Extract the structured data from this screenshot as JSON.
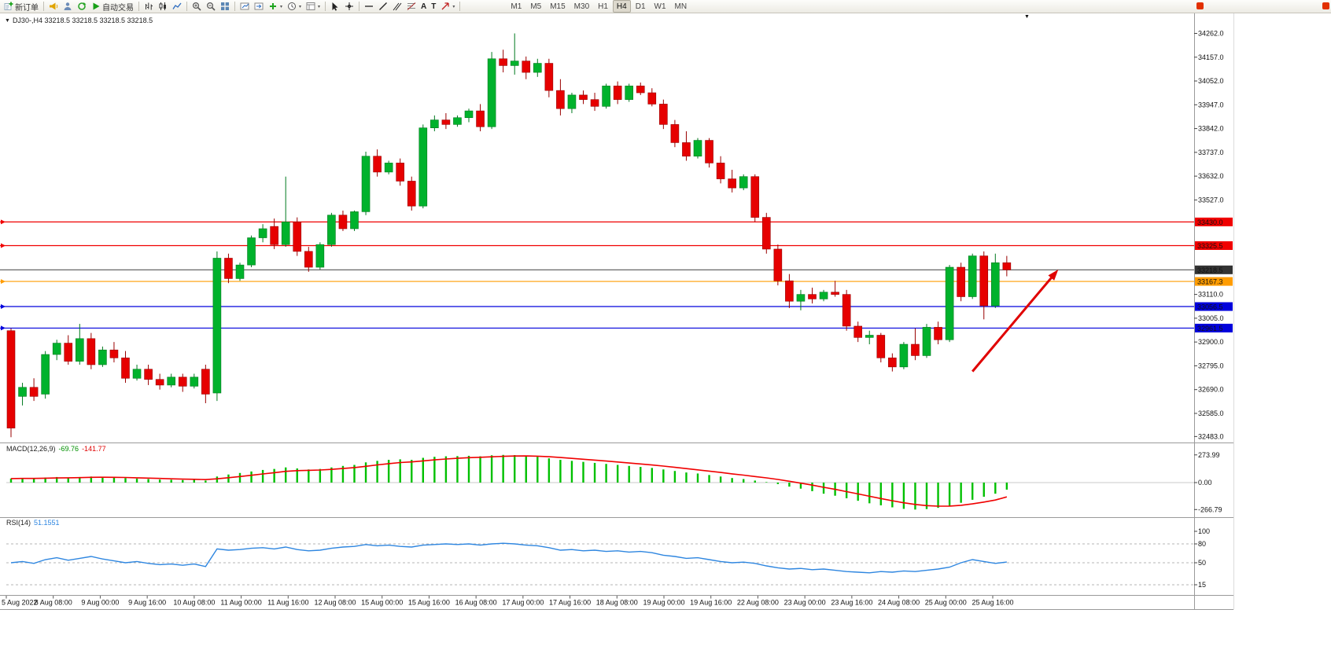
{
  "toolbar": {
    "new_order": "新订单",
    "autotrade": "自动交易",
    "text_tool": "A",
    "text_label_tool": "T",
    "timeframes": [
      "M1",
      "M5",
      "M15",
      "M30",
      "H1",
      "H4",
      "D1",
      "W1",
      "MN"
    ],
    "active_timeframe": "H4"
  },
  "chart_header": {
    "symbol_info": "DJ30-,H4 33218.5 33218.5 33218.5 33218.5"
  },
  "colors": {
    "bull": "#00b22c",
    "bull_border": "#007a1e",
    "bear": "#e60000",
    "bear_border": "#990000",
    "macd_hist": "#00c000",
    "macd_signal": "#f00000",
    "rsi_line": "#2e86e0",
    "grid_border": "#8c8c8c",
    "arrow": "#e00000"
  },
  "chart_data": {
    "type": "candlestick",
    "symbol": "DJ30-",
    "timeframe": "H4",
    "price_panel": {
      "y_range": [
        32460,
        34340
      ],
      "y_tick_labels": [
        "34262.0",
        "34157.0",
        "34052.0",
        "33947.0",
        "33842.0",
        "33737.0",
        "33632.0",
        "33527.0",
        "33110.0",
        "33005.0",
        "32900.0",
        "32795.0",
        "32690.0",
        "32585.0",
        "32483.0"
      ],
      "y_tick_values": [
        34262.0,
        34157.0,
        34052.0,
        33947.0,
        33842.0,
        33737.0,
        33632.0,
        33527.0,
        33110.0,
        33005.0,
        32900.0,
        32795.0,
        32690.0,
        32585.0,
        32483.0
      ],
      "hlines": [
        {
          "price": 33430.0,
          "label": "33430.0",
          "color": "#f00000",
          "tag_bg": "#f00000",
          "role": "resistance-line"
        },
        {
          "price": 33325.5,
          "label": "33325.5",
          "color": "#f00000",
          "tag_bg": "#f00000",
          "role": "resistance-line"
        },
        {
          "price": 33218.5,
          "label": "33218.5",
          "color": "#555555",
          "tag_bg": "#333333",
          "role": "current-price-line"
        },
        {
          "price": 33167.3,
          "label": "33167.3",
          "color": "#ff9c00",
          "tag_bg": "#ff9c00",
          "role": "support-line"
        },
        {
          "price": 33056.5,
          "label": "33056.5",
          "color": "#0000dc",
          "tag_bg": "#0000dc",
          "role": "support-line"
        },
        {
          "price": 32961.5,
          "label": "32961.5",
          "color": "#0000dc",
          "tag_bg": "#0000dc",
          "role": "support-line"
        }
      ],
      "candles": [
        [
          32950,
          32960,
          32480,
          32520
        ],
        [
          32660,
          32720,
          32620,
          32700
        ],
        [
          32700,
          32740,
          32640,
          32660
        ],
        [
          32670,
          32860,
          32650,
          32845
        ],
        [
          32845,
          32910,
          32820,
          32895
        ],
        [
          32895,
          32930,
          32800,
          32815
        ],
        [
          32815,
          32980,
          32800,
          32915
        ],
        [
          32915,
          32940,
          32780,
          32800
        ],
        [
          32800,
          32880,
          32790,
          32865
        ],
        [
          32865,
          32900,
          32810,
          32830
        ],
        [
          32830,
          32860,
          32720,
          32740
        ],
        [
          32740,
          32800,
          32730,
          32780
        ],
        [
          32780,
          32800,
          32710,
          32735
        ],
        [
          32735,
          32760,
          32690,
          32710
        ],
        [
          32710,
          32760,
          32700,
          32745
        ],
        [
          32745,
          32760,
          32680,
          32705
        ],
        [
          32705,
          32760,
          32695,
          32745
        ],
        [
          32780,
          32800,
          32630,
          32670
        ],
        [
          32675,
          33300,
          32640,
          33270
        ],
        [
          33270,
          33290,
          33160,
          33180
        ],
        [
          33180,
          33250,
          33170,
          33240
        ],
        [
          33240,
          33370,
          33230,
          33360
        ],
        [
          33360,
          33420,
          33340,
          33400
        ],
        [
          33410,
          33445,
          33310,
          33330
        ],
        [
          33330,
          33630,
          33320,
          33430
        ],
        [
          33430,
          33450,
          33280,
          33300
        ],
        [
          33300,
          33320,
          33210,
          33230
        ],
        [
          33230,
          33340,
          33220,
          33330
        ],
        [
          33330,
          33470,
          33320,
          33460
        ],
        [
          33460,
          33480,
          33390,
          33400
        ],
        [
          33400,
          33480,
          33390,
          33475
        ],
        [
          33475,
          33740,
          33460,
          33720
        ],
        [
          33720,
          33750,
          33630,
          33650
        ],
        [
          33650,
          33700,
          33640,
          33690
        ],
        [
          33690,
          33710,
          33590,
          33610
        ],
        [
          33610,
          33630,
          33480,
          33500
        ],
        [
          33500,
          33860,
          33490,
          33845
        ],
        [
          33845,
          33900,
          33830,
          33880
        ],
        [
          33880,
          33910,
          33840,
          33860
        ],
        [
          33860,
          33900,
          33850,
          33890
        ],
        [
          33890,
          33930,
          33870,
          33920
        ],
        [
          33920,
          33950,
          33830,
          33850
        ],
        [
          33850,
          34180,
          33840,
          34150
        ],
        [
          34150,
          34190,
          34090,
          34120
        ],
        [
          34120,
          34262,
          34080,
          34140
        ],
        [
          34140,
          34160,
          34060,
          34090
        ],
        [
          34090,
          34150,
          34070,
          34130
        ],
        [
          34130,
          34150,
          33980,
          34010
        ],
        [
          34010,
          34060,
          33900,
          33930
        ],
        [
          33930,
          34000,
          33910,
          33990
        ],
        [
          33990,
          34010,
          33950,
          33970
        ],
        [
          33970,
          34000,
          33920,
          33940
        ],
        [
          33940,
          34040,
          33930,
          34030
        ],
        [
          34030,
          34050,
          33950,
          33970
        ],
        [
          33970,
          34040,
          33960,
          34030
        ],
        [
          34030,
          34045,
          33990,
          34000
        ],
        [
          34000,
          34020,
          33940,
          33950
        ],
        [
          33950,
          33970,
          33840,
          33860
        ],
        [
          33860,
          33880,
          33760,
          33780
        ],
        [
          33780,
          33830,
          33700,
          33720
        ],
        [
          33720,
          33800,
          33710,
          33790
        ],
        [
          33790,
          33800,
          33670,
          33690
        ],
        [
          33690,
          33720,
          33600,
          33620
        ],
        [
          33620,
          33660,
          33560,
          33580
        ],
        [
          33580,
          33640,
          33570,
          33630
        ],
        [
          33630,
          33640,
          33430,
          33450
        ],
        [
          33450,
          33470,
          33290,
          33310
        ],
        [
          33310,
          33330,
          33150,
          33170
        ],
        [
          33170,
          33200,
          33050,
          33080
        ],
        [
          33080,
          33130,
          33040,
          33110
        ],
        [
          33110,
          33140,
          33070,
          33090
        ],
        [
          33090,
          33130,
          33080,
          33120
        ],
        [
          33120,
          33170,
          33100,
          33110
        ],
        [
          33110,
          33130,
          32950,
          32970
        ],
        [
          32970,
          32990,
          32900,
          32920
        ],
        [
          32920,
          32950,
          32890,
          32930
        ],
        [
          32930,
          32940,
          32810,
          32830
        ],
        [
          32830,
          32850,
          32770,
          32790
        ],
        [
          32790,
          32900,
          32780,
          32890
        ],
        [
          32890,
          32960,
          32820,
          32840
        ],
        [
          32840,
          32980,
          32830,
          32965
        ],
        [
          32965,
          32990,
          32890,
          32910
        ],
        [
          32910,
          33240,
          32900,
          33230
        ],
        [
          33230,
          33250,
          33080,
          33100
        ],
        [
          33100,
          33290,
          33090,
          33280
        ],
        [
          33280,
          33300,
          33000,
          33060
        ],
        [
          33060,
          33290,
          33050,
          33250
        ],
        [
          33250,
          33280,
          33190,
          33218.5
        ]
      ],
      "arrow": {
        "from_index": 84,
        "from_price": 32770,
        "to_index": 91.5,
        "to_price": 33220,
        "color": "#e00000"
      }
    },
    "x_labels": [
      "5 Aug 2022",
      "8 Aug 08:00",
      "9 Aug 00:00",
      "9 Aug 16:00",
      "10 Aug 08:00",
      "11 Aug 00:00",
      "11 Aug 16:00",
      "12 Aug 08:00",
      "15 Aug 00:00",
      "15 Aug 16:00",
      "16 Aug 08:00",
      "17 Aug 00:00",
      "17 Aug 16:00",
      "18 Aug 08:00",
      "19 Aug 00:00",
      "19 Aug 16:00",
      "22 Aug 08:00",
      "23 Aug 00:00",
      "23 Aug 16:00",
      "24 Aug 08:00",
      "25 Aug 00:00",
      "25 Aug 16:00"
    ],
    "macd": {
      "params_label": "MACD(12,26,9)",
      "main_value": "-69.76",
      "signal_value": "-141.77",
      "y_range": [
        -280,
        280
      ],
      "scale_labels": [
        "273.99",
        "0.00",
        "-266.79"
      ],
      "scale_values": [
        273.99,
        0,
        -266.79
      ],
      "hist": [
        40,
        45,
        40,
        50,
        55,
        50,
        55,
        60,
        55,
        50,
        45,
        40,
        35,
        30,
        28,
        25,
        28,
        20,
        60,
        80,
        95,
        110,
        125,
        135,
        150,
        140,
        130,
        135,
        150,
        165,
        175,
        200,
        215,
        225,
        230,
        225,
        245,
        255,
        260,
        262,
        265,
        260,
        270,
        274,
        272,
        265,
        255,
        240,
        225,
        215,
        205,
        195,
        185,
        175,
        165,
        155,
        145,
        130,
        115,
        100,
        90,
        75,
        60,
        45,
        35,
        20,
        5,
        -15,
        -40,
        -60,
        -85,
        -110,
        -130,
        -155,
        -180,
        -205,
        -225,
        -245,
        -260,
        -267,
        -262,
        -250,
        -230,
        -200,
        -170,
        -140,
        -110,
        -69.8
      ],
      "signal": [
        40,
        41.3,
        40.9,
        43.2,
        46.2,
        47.1,
        49.1,
        51.8,
        52.6,
        52,
        50.2,
        47.7,
        44.5,
        40.9,
        37.7,
        34.5,
        32.9,
        29.7,
        37.2,
        47.9,
        59.7,
        72.3,
        85.5,
        97.8,
        110.9,
        118.2,
        121.1,
        124.6,
        130.9,
        139.5,
        148.3,
        161.3,
        174.7,
        187.3,
        198,
        204.7,
        214.8,
        224.8,
        233.6,
        240.7,
        246.8,
        250.1,
        255.1,
        259.8,
        262.9,
        263.4,
        261.3,
        256,
        248.2,
        239.9,
        231.2,
        222.1,
        212.8,
        203.4,
        193.8,
        184.1,
        174.3,
        163.2,
        151.2,
        138.4,
        126.3,
        113.5,
        100.1,
        86.3,
        73.5,
        60.1,
        46.3,
        31,
        13.3,
        -5.1,
        -25,
        -46.3,
        -67.2,
        -89.2,
        -111.9,
        -135.2,
        -157.6,
        -179.5,
        -199.6,
        -216.5,
        -227.8,
        -233.4,
        -232.5,
        -224.4,
        -210.8,
        -193.1,
        -172.3,
        -141.8
      ]
    },
    "rsi": {
      "params_label": "RSI(14)",
      "value": "51.1551",
      "y_range": [
        0,
        100
      ],
      "levels": [
        80,
        50,
        15
      ],
      "scale_labels": [
        "100",
        "80",
        "50",
        "15"
      ],
      "scale_values": [
        100,
        80,
        50,
        15
      ],
      "values": [
        50,
        52,
        49,
        55,
        58,
        54,
        57,
        60,
        56,
        53,
        50,
        52,
        49,
        47,
        48,
        46,
        48,
        44,
        72,
        70,
        71,
        73,
        74,
        72,
        75,
        71,
        69,
        70,
        73,
        75,
        76,
        79,
        77,
        78,
        76,
        75,
        78,
        79,
        80,
        79,
        80,
        78,
        80,
        81,
        80,
        78,
        77,
        74,
        70,
        71,
        69,
        70,
        68,
        69,
        67,
        68,
        66,
        62,
        60,
        57,
        58,
        55,
        52,
        50,
        51,
        49,
        45,
        42,
        40,
        41,
        39,
        40,
        38,
        36,
        35,
        34,
        36,
        35,
        37,
        36,
        38,
        40,
        43,
        50,
        55,
        52,
        49,
        51.16
      ]
    }
  }
}
